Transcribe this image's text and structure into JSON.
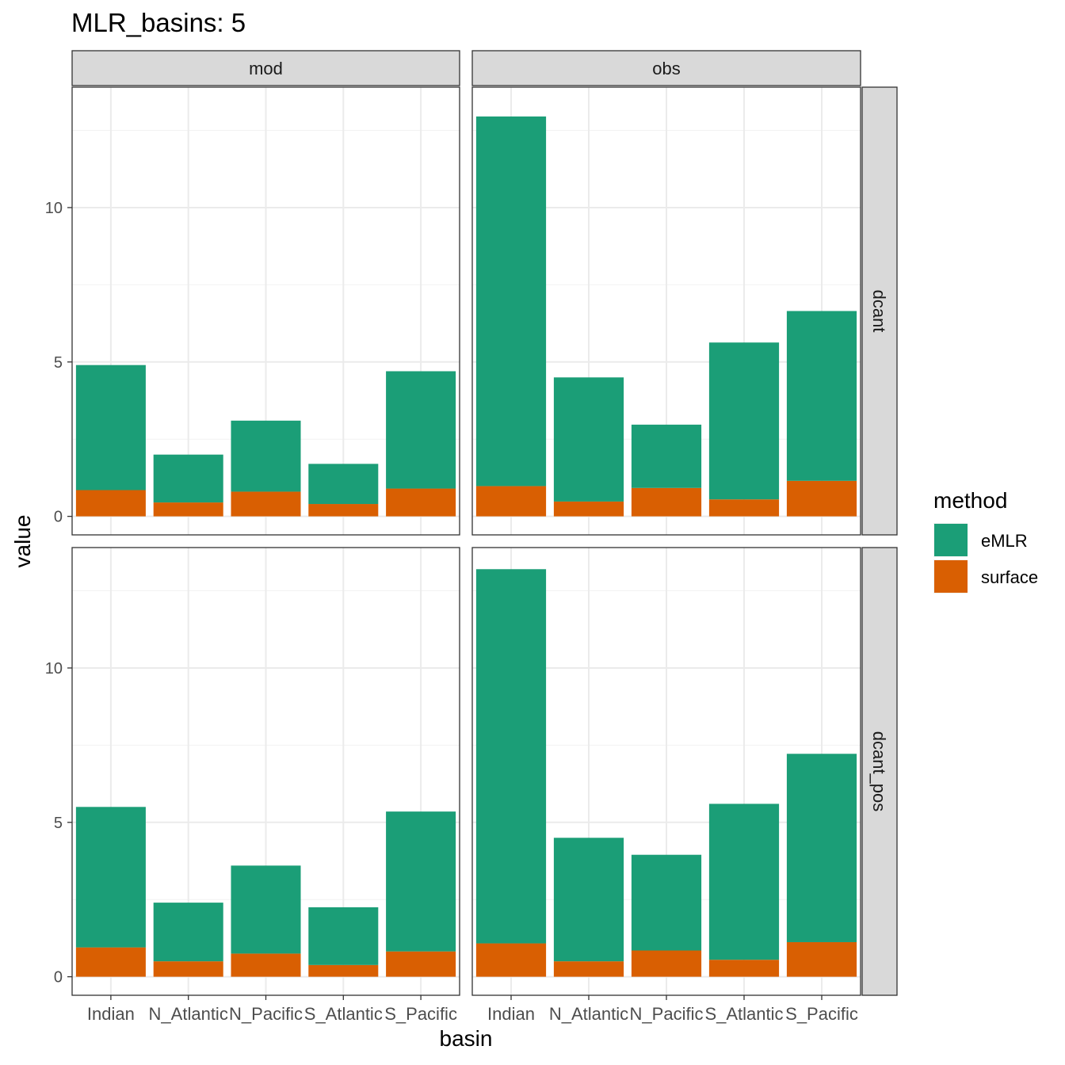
{
  "chart_data": {
    "type": "bar",
    "stacked": true,
    "title": "MLR_basins: 5",
    "xlabel": "basin",
    "ylabel": "value",
    "categories": [
      "Indian",
      "N_Atlantic",
      "N_Pacific",
      "S_Atlantic",
      "S_Pacific"
    ],
    "column_facets": [
      "mod",
      "obs"
    ],
    "row_facets": [
      "dcant",
      "dcant_pos"
    ],
    "ylim": [
      -0.6,
      13.9
    ],
    "yticks": [
      0,
      5,
      10
    ],
    "grid": true,
    "legend": {
      "title": "method",
      "position": "right",
      "entries": [
        {
          "label": "eMLR",
          "color": "#1B9E77"
        },
        {
          "label": "surface",
          "color": "#D95F02"
        }
      ]
    },
    "panels": [
      {
        "col": "mod",
        "row": "dcant",
        "series": [
          {
            "name": "surface",
            "values": [
              0.85,
              0.45,
              0.8,
              0.4,
              0.9
            ]
          },
          {
            "name": "eMLR",
            "values": [
              4.05,
              1.55,
              2.3,
              1.3,
              3.8
            ]
          }
        ]
      },
      {
        "col": "obs",
        "row": "dcant",
        "series": [
          {
            "name": "surface",
            "values": [
              0.98,
              0.48,
              0.92,
              0.55,
              1.15
            ]
          },
          {
            "name": "eMLR",
            "values": [
              11.97,
              4.02,
              2.05,
              5.08,
              5.5
            ]
          }
        ]
      },
      {
        "col": "mod",
        "row": "dcant_pos",
        "series": [
          {
            "name": "surface",
            "values": [
              0.95,
              0.5,
              0.75,
              0.38,
              0.82
            ]
          },
          {
            "name": "eMLR",
            "values": [
              4.55,
              1.9,
              2.85,
              1.87,
              4.53
            ]
          }
        ]
      },
      {
        "col": "obs",
        "row": "dcant_pos",
        "series": [
          {
            "name": "surface",
            "values": [
              1.08,
              0.5,
              0.85,
              0.55,
              1.12
            ]
          },
          {
            "name": "eMLR",
            "values": [
              12.12,
              4.0,
              3.1,
              5.05,
              6.1
            ]
          }
        ]
      }
    ]
  }
}
